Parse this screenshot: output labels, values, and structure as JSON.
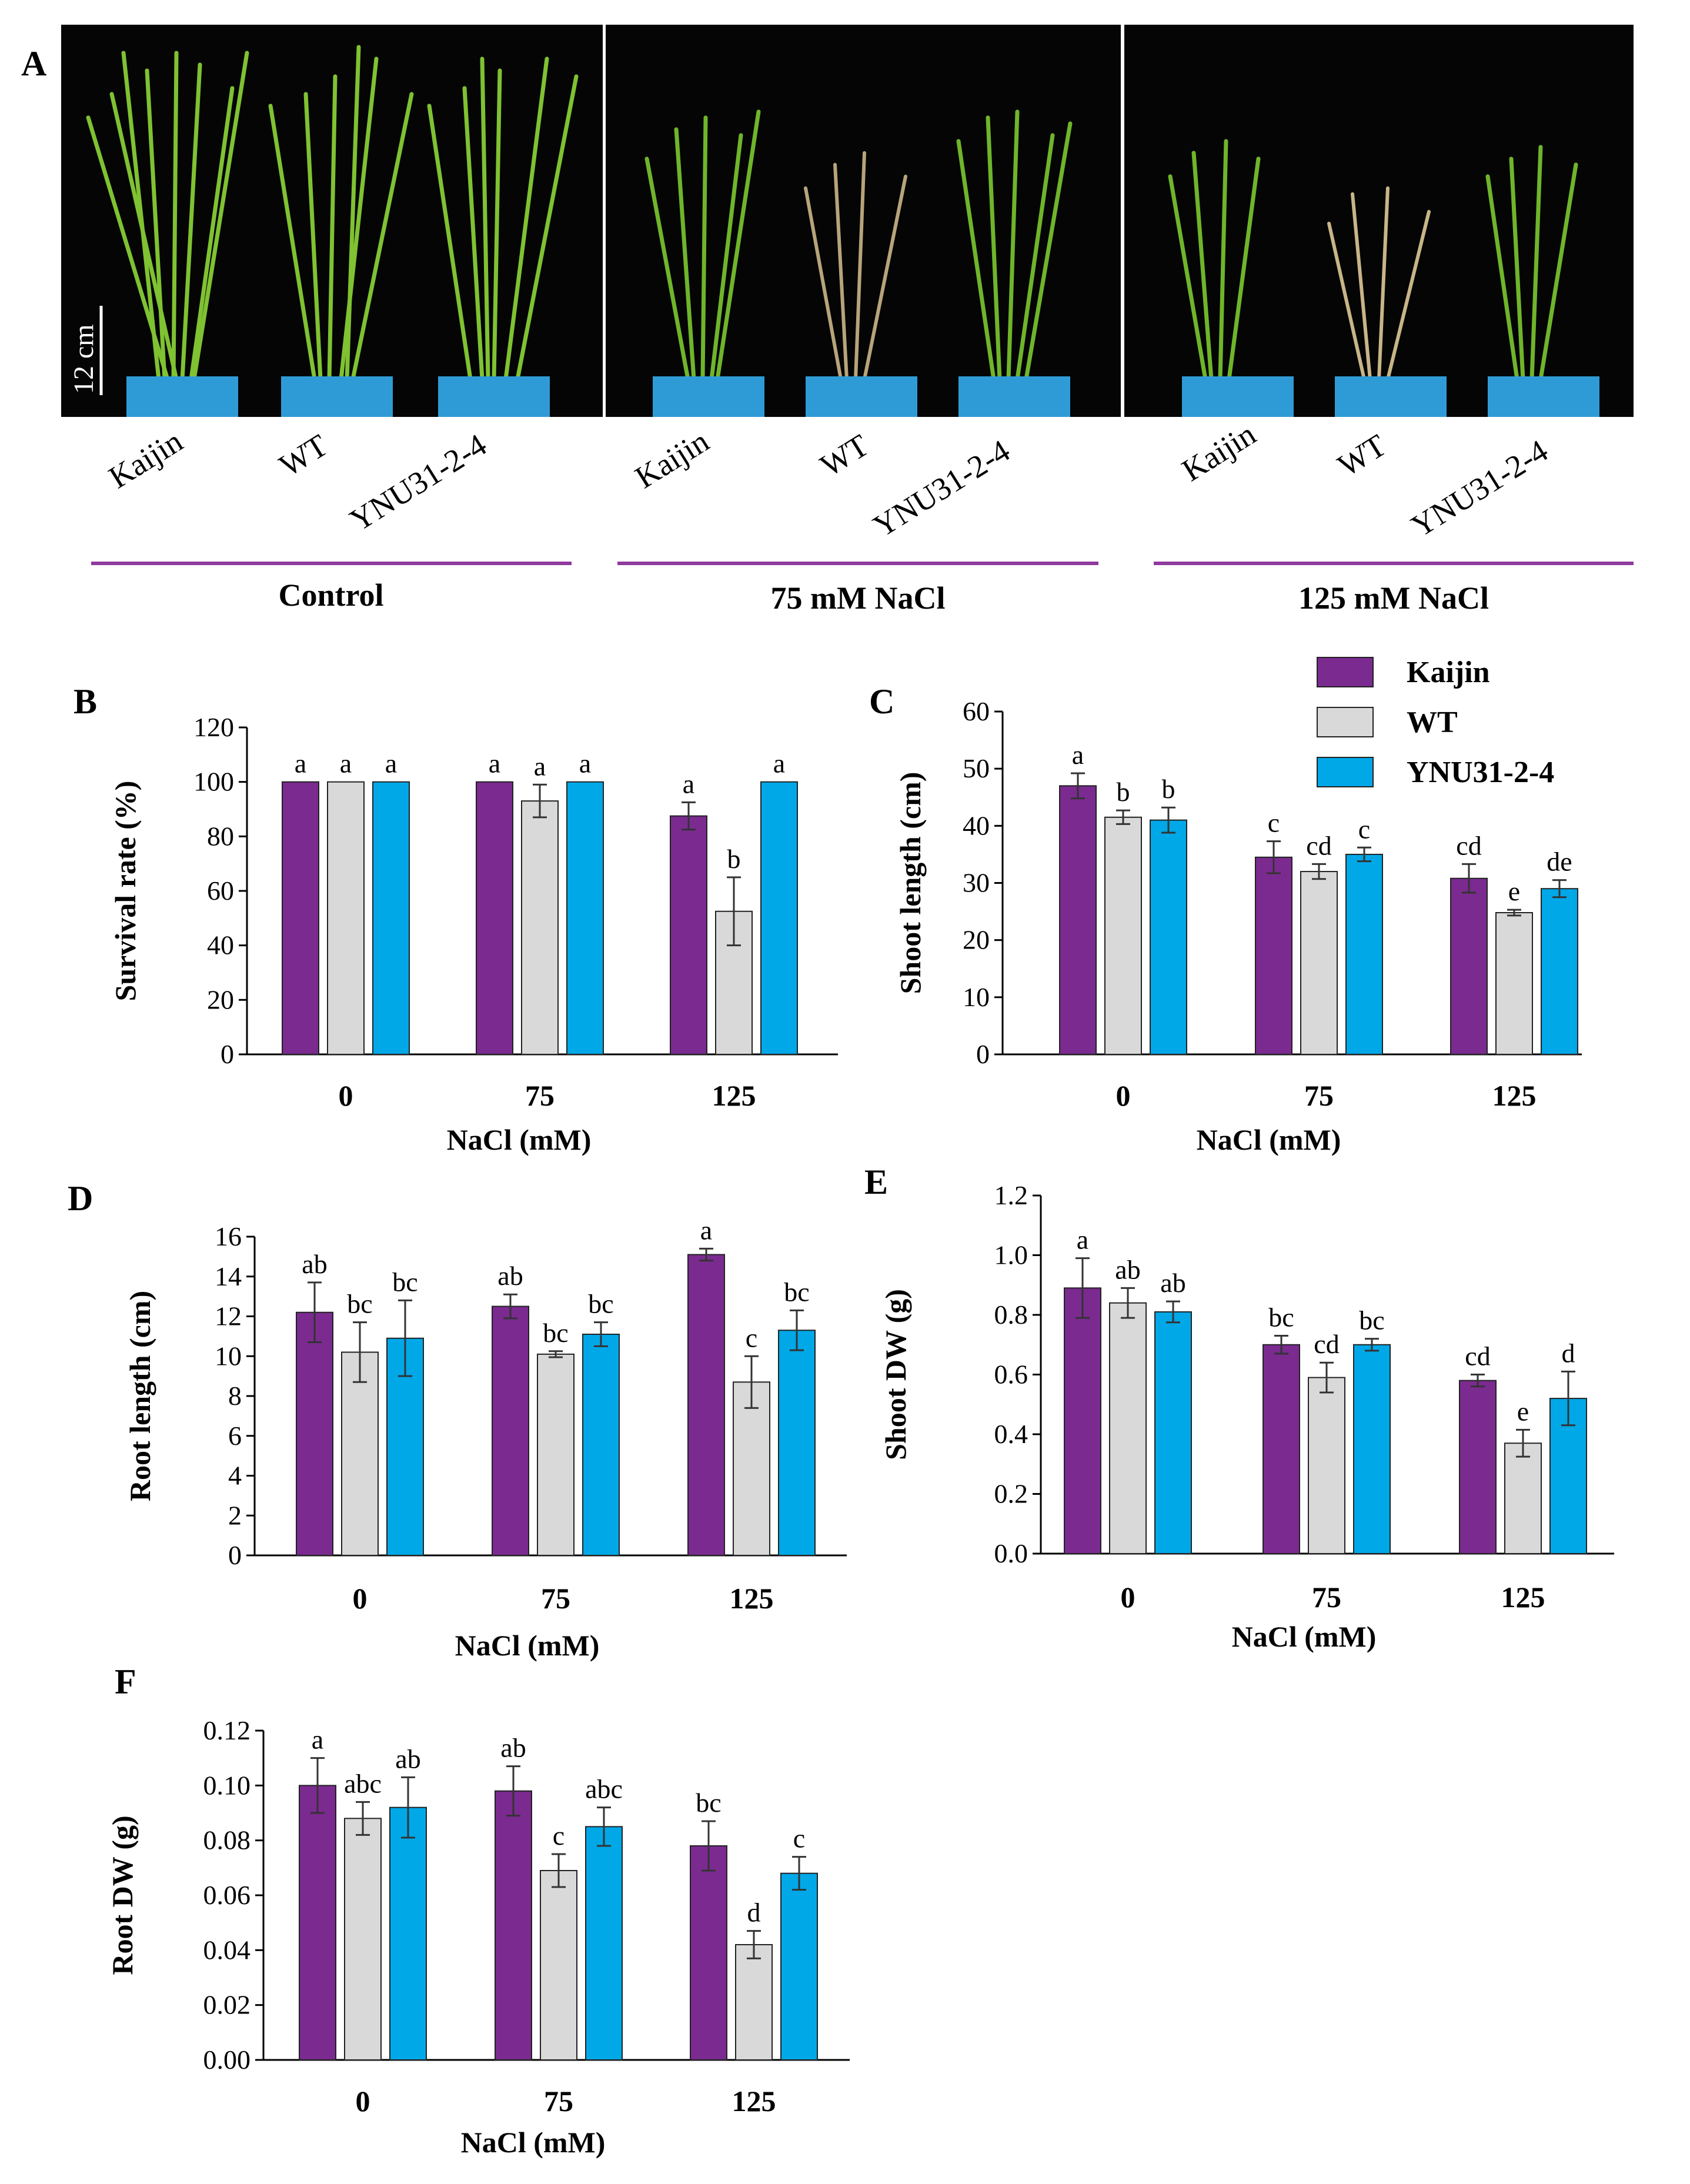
{
  "panels": {
    "A": "A",
    "B": "B",
    "C": "C",
    "D": "D",
    "E": "E",
    "F": "F"
  },
  "photo": {
    "genotypes": [
      "Kaijin",
      "WT",
      "YNU31-2-4"
    ],
    "conditions": [
      "Control",
      "75 mM NaCl",
      "125 mM NaCl"
    ],
    "scale_bar": "12 cm",
    "condition_line_color": "#8e3a9d"
  },
  "legend": [
    {
      "name": "Kaijin",
      "color": "#7b2a90"
    },
    {
      "name": "WT",
      "color": "#d9d9d9"
    },
    {
      "name": "YNU31-2-4",
      "color": "#00a8e8"
    }
  ],
  "chart_data": [
    {
      "panel": "B",
      "type": "bar",
      "ylabel": "Survival rate (%)",
      "xlabel": "NaCl (mM)",
      "categories": [
        "0",
        "75",
        "125"
      ],
      "ylim": [
        0,
        120
      ],
      "yticks": [
        0,
        20,
        40,
        60,
        80,
        100,
        120
      ],
      "decimals": 0,
      "series": [
        {
          "name": "Kaijin",
          "values": [
            100,
            100,
            87.5
          ],
          "errors": [
            0,
            0,
            5
          ],
          "letters": [
            "a",
            "a",
            "a"
          ]
        },
        {
          "name": "WT",
          "values": [
            100,
            93,
            52.5
          ],
          "errors": [
            0,
            6,
            12.5
          ],
          "letters": [
            "a",
            "a",
            "b"
          ]
        },
        {
          "name": "YNU31-2-4",
          "values": [
            100,
            100,
            100
          ],
          "errors": [
            0,
            0,
            0
          ],
          "letters": [
            "a",
            "a",
            "a"
          ]
        }
      ]
    },
    {
      "panel": "C",
      "type": "bar",
      "ylabel": "Shoot length (cm)",
      "xlabel": "NaCl (mM)",
      "categories": [
        "0",
        "75",
        "125"
      ],
      "ylim": [
        0,
        60
      ],
      "yticks": [
        0,
        10,
        20,
        30,
        40,
        50,
        60
      ],
      "decimals": 0,
      "series": [
        {
          "name": "Kaijin",
          "values": [
            47,
            34.5,
            30.8
          ],
          "errors": [
            2.2,
            2.8,
            2.5
          ],
          "letters": [
            "a",
            "c",
            "cd"
          ]
        },
        {
          "name": "WT",
          "values": [
            41.5,
            32,
            24.8
          ],
          "errors": [
            1.2,
            1.3,
            0.5
          ],
          "letters": [
            "b",
            "cd",
            "e"
          ]
        },
        {
          "name": "YNU31-2-4",
          "values": [
            41,
            35,
            29
          ],
          "errors": [
            2.2,
            1.2,
            1.5
          ],
          "letters": [
            "b",
            "c",
            "de"
          ]
        }
      ]
    },
    {
      "panel": "D",
      "type": "bar",
      "ylabel": "Root length (cm)",
      "xlabel": "NaCl (mM)",
      "categories": [
        "0",
        "75",
        "125"
      ],
      "ylim": [
        0,
        16
      ],
      "yticks": [
        0,
        2,
        4,
        6,
        8,
        10,
        12,
        14,
        16
      ],
      "decimals": 0,
      "series": [
        {
          "name": "Kaijin",
          "values": [
            12.2,
            12.5,
            15.1
          ],
          "errors": [
            1.5,
            0.6,
            0.3
          ],
          "letters": [
            "ab",
            "ab",
            "a"
          ]
        },
        {
          "name": "WT",
          "values": [
            10.2,
            10.1,
            8.7
          ],
          "errors": [
            1.5,
            0.15,
            1.3
          ],
          "letters": [
            "bc",
            "bc",
            "c"
          ]
        },
        {
          "name": "YNU31-2-4",
          "values": [
            10.9,
            11.1,
            11.3
          ],
          "errors": [
            1.9,
            0.6,
            1.0
          ],
          "letters": [
            "bc",
            "bc",
            "bc"
          ]
        }
      ]
    },
    {
      "panel": "E",
      "type": "bar",
      "ylabel": "Shoot DW (g)",
      "xlabel": "NaCl (mM)",
      "categories": [
        "0",
        "75",
        "125"
      ],
      "ylim": [
        0,
        1.2
      ],
      "yticks": [
        0,
        0.2,
        0.4,
        0.6,
        0.8,
        1.0,
        1.2
      ],
      "decimals": 1,
      "series": [
        {
          "name": "Kaijin",
          "values": [
            0.89,
            0.7,
            0.58
          ],
          "errors": [
            0.1,
            0.03,
            0.02
          ],
          "letters": [
            "a",
            "bc",
            "cd"
          ]
        },
        {
          "name": "WT",
          "values": [
            0.84,
            0.59,
            0.37
          ],
          "errors": [
            0.05,
            0.05,
            0.045
          ],
          "letters": [
            "ab",
            "cd",
            "e"
          ]
        },
        {
          "name": "YNU31-2-4",
          "values": [
            0.81,
            0.7,
            0.52
          ],
          "errors": [
            0.035,
            0.02,
            0.09
          ],
          "letters": [
            "ab",
            "bc",
            "d"
          ]
        }
      ]
    },
    {
      "panel": "F",
      "type": "bar",
      "ylabel": "Root DW (g)",
      "xlabel": "NaCl (mM)",
      "categories": [
        "0",
        "75",
        "125"
      ],
      "ylim": [
        0,
        0.12
      ],
      "yticks": [
        0,
        0.02,
        0.04,
        0.06,
        0.08,
        0.1,
        0.12
      ],
      "decimals": 2,
      "series": [
        {
          "name": "Kaijin",
          "values": [
            0.1,
            0.098,
            0.078
          ],
          "errors": [
            0.01,
            0.009,
            0.009
          ],
          "letters": [
            "a",
            "ab",
            "bc"
          ]
        },
        {
          "name": "WT",
          "values": [
            0.088,
            0.069,
            0.042
          ],
          "errors": [
            0.006,
            0.006,
            0.005
          ],
          "letters": [
            "abc",
            "c",
            "d"
          ]
        },
        {
          "name": "YNU31-2-4",
          "values": [
            0.092,
            0.085,
            0.068
          ],
          "errors": [
            0.011,
            0.007,
            0.006
          ],
          "letters": [
            "ab",
            "abc",
            "c"
          ]
        }
      ]
    }
  ]
}
